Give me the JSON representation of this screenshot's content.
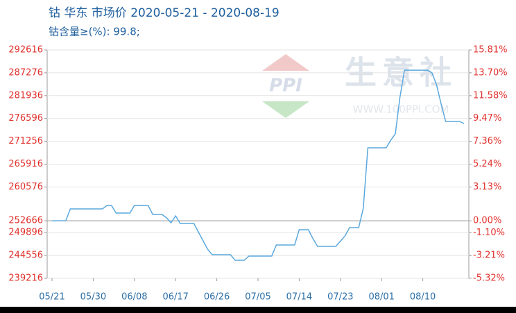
{
  "chart_data": {
    "type": "line",
    "title": "钴 华东 市场价 2020-05-21 - 2020-08-19",
    "subtitle": "钴含量≥(%): 99.8;",
    "watermark": "生意社",
    "watermark_url": "WWW.100PPI.COM",
    "logo_text": "PPI",
    "categories": [
      "05/21",
      null,
      null,
      null,
      null,
      null,
      null,
      null,
      null,
      "05/30",
      null,
      null,
      null,
      null,
      null,
      null,
      null,
      null,
      "06/08",
      null,
      null,
      null,
      null,
      null,
      null,
      null,
      null,
      "06/17",
      null,
      null,
      null,
      null,
      null,
      null,
      null,
      null,
      "06/26",
      null,
      null,
      null,
      null,
      null,
      null,
      null,
      null,
      "07/05",
      null,
      null,
      null,
      null,
      null,
      null,
      null,
      null,
      "07/14",
      null,
      null,
      null,
      null,
      null,
      null,
      null,
      null,
      "07/23",
      null,
      null,
      null,
      null,
      null,
      null,
      null,
      null,
      "08/01",
      null,
      null,
      null,
      null,
      null,
      null,
      null,
      null,
      "08/10",
      null,
      null,
      null,
      null,
      null,
      null,
      null,
      null,
      null
    ],
    "series": [
      {
        "color": "#5aa8de",
        "values": [
          252666,
          252666,
          252666,
          252666,
          255440,
          255440,
          255440,
          255440,
          255440,
          255440,
          255440,
          255440,
          256250,
          256250,
          254470,
          254470,
          254470,
          254470,
          256250,
          256250,
          256250,
          256250,
          254150,
          254150,
          254150,
          253400,
          252200,
          253800,
          252040,
          252040,
          252040,
          252040,
          250000,
          248000,
          246000,
          244730,
          244730,
          244730,
          244730,
          244730,
          243440,
          243440,
          243440,
          244410,
          244410,
          244410,
          244410,
          244410,
          244410,
          247000,
          247000,
          247000,
          247000,
          247000,
          250570,
          250570,
          250570,
          248500,
          246680,
          246680,
          246680,
          246680,
          246680,
          247900,
          249110,
          251060,
          251060,
          251060,
          255600,
          269730,
          269730,
          269730,
          269730,
          269730,
          271500,
          273000,
          281500,
          287900,
          287900,
          287900,
          287900,
          287900,
          287900,
          287276,
          284500,
          280000,
          275900,
          275900,
          275900,
          275900,
          275410
        ]
      }
    ],
    "ylim": [
      239216,
      292616
    ],
    "yticks": [
      239216,
      244556,
      249896,
      252666,
      260576,
      265916,
      271256,
      276596,
      281936,
      287276,
      292616
    ],
    "y2lim": [
      -5.32,
      15.81
    ],
    "y2ticks": [
      {
        "value": -5.32,
        "label": "-5.32%"
      },
      {
        "value": -3.21,
        "label": "-3.21%"
      },
      {
        "value": -1.1,
        "label": "-1.10%"
      },
      {
        "value": 0,
        "label": "0.00%"
      },
      {
        "value": 3.13,
        "label": "3.13%"
      },
      {
        "value": 5.24,
        "label": "5.24%"
      },
      {
        "value": 7.36,
        "label": "7.36%"
      },
      {
        "value": 9.47,
        "label": "9.47%"
      },
      {
        "value": 11.58,
        "label": "11.58%"
      },
      {
        "value": 13.7,
        "label": "13.70%"
      },
      {
        "value": 15.81,
        "label": "15.81%"
      }
    ],
    "grid": true,
    "y2_zero_line": true
  }
}
